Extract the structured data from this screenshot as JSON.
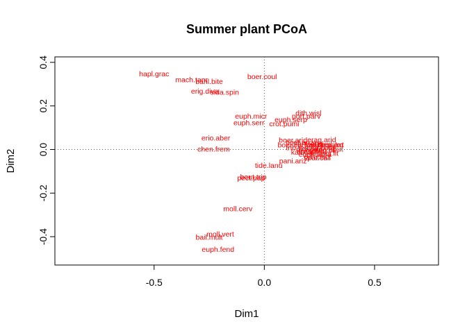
{
  "chart_data": {
    "type": "scatter",
    "title": "Summer plant PCoA",
    "xlabel": "Dim1",
    "ylabel": "Dim2",
    "xlim": [
      -0.95,
      0.79
    ],
    "ylim": [
      -0.53,
      0.425
    ],
    "xticks": [
      {
        "value": -0.5,
        "label": "-0.5"
      },
      {
        "value": 0.0,
        "label": "0.0"
      },
      {
        "value": 0.5,
        "label": "0.5"
      }
    ],
    "yticks": [
      {
        "value": -0.4,
        "label": "-0.4"
      },
      {
        "value": -0.2,
        "label": "-0.2"
      },
      {
        "value": 0.0,
        "label": "0.0"
      },
      {
        "value": 0.2,
        "label": "0.2"
      },
      {
        "value": 0.4,
        "label": "0.4"
      }
    ],
    "reference_lines": {
      "x": 0,
      "y": 0,
      "style": "dotted"
    },
    "grid": false,
    "label_color": "#ff0000",
    "points": [
      {
        "label": "hapl.grac",
        "x": -0.5,
        "y": 0.345
      },
      {
        "label": "mach.tanr",
        "x": -0.33,
        "y": 0.318
      },
      {
        "label": "bahl.bite",
        "x": -0.25,
        "y": 0.31
      },
      {
        "label": "boer.coul",
        "x": -0.01,
        "y": 0.332
      },
      {
        "label": "erig.diva",
        "x": -0.27,
        "y": 0.265
      },
      {
        "label": "sida.spin",
        "x": -0.18,
        "y": 0.26
      },
      {
        "label": "euph.micr",
        "x": -0.06,
        "y": 0.15
      },
      {
        "label": "euph.serr",
        "x": -0.07,
        "y": 0.12
      },
      {
        "label": "euph.serp",
        "x": 0.12,
        "y": 0.135
      },
      {
        "label": "crot.pumi",
        "x": 0.09,
        "y": 0.115
      },
      {
        "label": "dith.wisl",
        "x": 0.2,
        "y": 0.165
      },
      {
        "label": "port.parv",
        "x": 0.19,
        "y": 0.15
      },
      {
        "label": "erio.aber",
        "x": -0.22,
        "y": 0.05
      },
      {
        "label": "chen.frem",
        "x": -0.23,
        "y": 0.0
      },
      {
        "label": "boer.arid",
        "x": 0.13,
        "y": 0.04
      },
      {
        "label": "erag.arid",
        "x": 0.26,
        "y": 0.042
      },
      {
        "label": "boer.cur",
        "x": 0.12,
        "y": 0.018
      },
      {
        "label": "bout.ariz",
        "x": 0.16,
        "y": 0.03
      },
      {
        "label": "sanv.abe",
        "x": 0.2,
        "y": 0.025
      },
      {
        "label": "kall.hirs",
        "x": 0.24,
        "y": 0.02
      },
      {
        "label": "amar.palm",
        "x": 0.28,
        "y": 0.018
      },
      {
        "label": "cheil.axt",
        "x": 0.3,
        "y": 0.02
      },
      {
        "label": "trib.terr",
        "x": 0.15,
        "y": 0.005
      },
      {
        "label": "digi.cali",
        "x": 0.2,
        "y": 0.0
      },
      {
        "label": "spor.cont",
        "x": 0.25,
        "y": 0.005
      },
      {
        "label": "sida.abut",
        "x": 0.29,
        "y": 0.0
      },
      {
        "label": "amar.blit",
        "x": 0.21,
        "y": -0.01
      },
      {
        "label": "erag.cil",
        "x": 0.27,
        "y": -0.005
      },
      {
        "label": "kall.calif",
        "x": 0.18,
        "y": -0.015
      },
      {
        "label": "euph.abra",
        "x": 0.23,
        "y": -0.025
      },
      {
        "label": "setaria.lit",
        "x": 0.27,
        "y": -0.02
      },
      {
        "label": "cyn.dact",
        "x": 0.24,
        "y": -0.035
      },
      {
        "label": "spat.cali",
        "x": 0.24,
        "y": -0.04
      },
      {
        "label": "pani.ariz",
        "x": 0.13,
        "y": -0.055
      },
      {
        "label": "tide.lanu",
        "x": 0.02,
        "y": -0.075
      },
      {
        "label": "bout.trip",
        "x": -0.05,
        "y": -0.128
      },
      {
        "label": "pect.pap",
        "x": -0.06,
        "y": -0.133
      },
      {
        "label": "moll.cerv",
        "x": -0.12,
        "y": -0.275
      },
      {
        "label": "moll.vert",
        "x": -0.2,
        "y": -0.39
      },
      {
        "label": "bail.mult",
        "x": -0.25,
        "y": -0.405
      },
      {
        "label": "euph.fend",
        "x": -0.21,
        "y": -0.46
      }
    ]
  }
}
